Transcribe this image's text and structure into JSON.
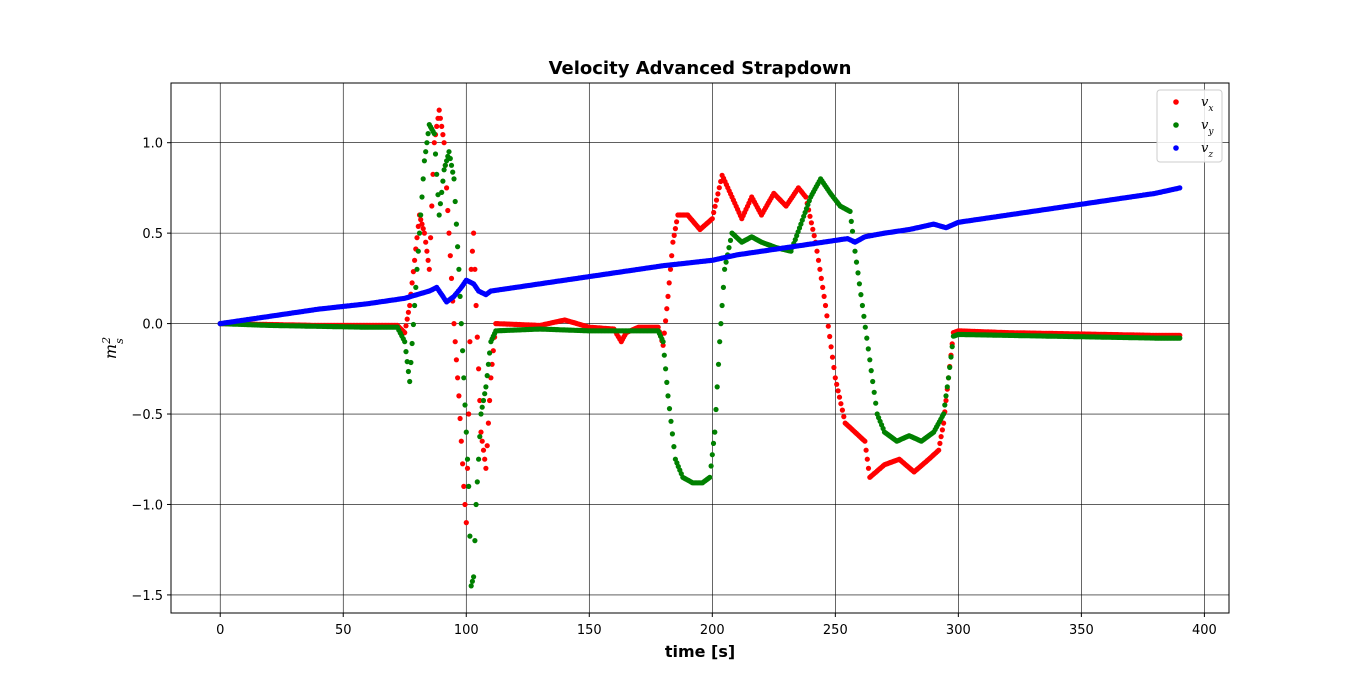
{
  "chart_data": {
    "type": "scatter",
    "title": "Velocity Advanced Strapdown",
    "xlabel": "time [s]",
    "ylabel": "m_s^2",
    "xlim": [
      -20,
      410
    ],
    "ylim": [
      -1.6,
      1.33
    ],
    "xticks": [
      0,
      50,
      100,
      150,
      200,
      250,
      300,
      350,
      400
    ],
    "xtick_labels": [
      "0",
      "50",
      "100",
      "150",
      "200",
      "250",
      "300",
      "350",
      "400"
    ],
    "yticks": [
      -1.5,
      -1.0,
      -0.5,
      0.0,
      0.5,
      1.0
    ],
    "ytick_labels": [
      "−1.5",
      "−1.0",
      "−0.5",
      "0.0",
      "0.5",
      "1.0"
    ],
    "grid": true,
    "legend_position": "top-right",
    "series": [
      {
        "name": "v_x",
        "legend_base": "v",
        "legend_sub": "x",
        "color": "#ff0000",
        "points": [
          [
            0,
            0.0
          ],
          [
            20,
            -0.005
          ],
          [
            40,
            -0.01
          ],
          [
            60,
            -0.01
          ],
          [
            72,
            -0.01
          ],
          [
            75,
            -0.05
          ],
          [
            77,
            0.1
          ],
          [
            79,
            0.35
          ],
          [
            81,
            0.6
          ],
          [
            83,
            0.5
          ],
          [
            85,
            0.3
          ],
          [
            87,
            1.0
          ],
          [
            89,
            1.18
          ],
          [
            91,
            1.0
          ],
          [
            93,
            0.5
          ],
          [
            95,
            0.0
          ],
          [
            97,
            -0.4
          ],
          [
            99,
            -0.9
          ],
          [
            100,
            -1.1
          ],
          [
            101,
            -0.5
          ],
          [
            102,
            0.3
          ],
          [
            103,
            0.5
          ],
          [
            104,
            0.1
          ],
          [
            106,
            -0.6
          ],
          [
            108,
            -0.8
          ],
          [
            110,
            -0.3
          ],
          [
            112,
            0.0
          ],
          [
            130,
            -0.01
          ],
          [
            140,
            0.02
          ],
          [
            150,
            -0.02
          ],
          [
            160,
            -0.03
          ],
          [
            163,
            -0.1
          ],
          [
            165,
            -0.05
          ],
          [
            170,
            -0.02
          ],
          [
            178,
            -0.02
          ],
          [
            180,
            -0.12
          ],
          [
            182,
            0.15
          ],
          [
            184,
            0.45
          ],
          [
            186,
            0.6
          ],
          [
            190,
            0.6
          ],
          [
            195,
            0.52
          ],
          [
            200,
            0.58
          ],
          [
            204,
            0.82
          ],
          [
            208,
            0.7
          ],
          [
            212,
            0.58
          ],
          [
            216,
            0.7
          ],
          [
            220,
            0.6
          ],
          [
            225,
            0.72
          ],
          [
            230,
            0.65
          ],
          [
            235,
            0.75
          ],
          [
            238,
            0.7
          ],
          [
            242,
            0.45
          ],
          [
            246,
            0.1
          ],
          [
            250,
            -0.3
          ],
          [
            254,
            -0.55
          ],
          [
            258,
            -0.6
          ],
          [
            262,
            -0.65
          ],
          [
            264,
            -0.85
          ],
          [
            270,
            -0.78
          ],
          [
            276,
            -0.75
          ],
          [
            282,
            -0.82
          ],
          [
            288,
            -0.75
          ],
          [
            292,
            -0.7
          ],
          [
            294,
            -0.55
          ],
          [
            296,
            -0.3
          ],
          [
            298,
            -0.05
          ],
          [
            300,
            -0.04
          ],
          [
            320,
            -0.05
          ],
          [
            340,
            -0.055
          ],
          [
            360,
            -0.06
          ],
          [
            380,
            -0.065
          ],
          [
            390,
            -0.065
          ]
        ]
      },
      {
        "name": "v_y",
        "legend_base": "v",
        "legend_sub": "y",
        "color": "#008000",
        "points": [
          [
            0,
            0.0
          ],
          [
            20,
            -0.01
          ],
          [
            40,
            -0.015
          ],
          [
            60,
            -0.02
          ],
          [
            72,
            -0.02
          ],
          [
            75,
            -0.1
          ],
          [
            77,
            -0.32
          ],
          [
            79,
            0.1
          ],
          [
            81,
            0.5
          ],
          [
            83,
            0.9
          ],
          [
            85,
            1.1
          ],
          [
            87,
            1.05
          ],
          [
            89,
            0.6
          ],
          [
            91,
            0.85
          ],
          [
            93,
            0.95
          ],
          [
            95,
            0.8
          ],
          [
            97,
            0.3
          ],
          [
            99,
            -0.3
          ],
          [
            101,
            -0.9
          ],
          [
            102,
            -1.45
          ],
          [
            103,
            -1.4
          ],
          [
            104,
            -1.0
          ],
          [
            106,
            -0.5
          ],
          [
            108,
            -0.35
          ],
          [
            110,
            -0.1
          ],
          [
            112,
            -0.04
          ],
          [
            130,
            -0.03
          ],
          [
            150,
            -0.04
          ],
          [
            170,
            -0.04
          ],
          [
            178,
            -0.04
          ],
          [
            180,
            -0.1
          ],
          [
            182,
            -0.4
          ],
          [
            185,
            -0.75
          ],
          [
            188,
            -0.85
          ],
          [
            192,
            -0.88
          ],
          [
            196,
            -0.88
          ],
          [
            199,
            -0.85
          ],
          [
            201,
            -0.6
          ],
          [
            203,
            -0.1
          ],
          [
            205,
            0.3
          ],
          [
            208,
            0.5
          ],
          [
            212,
            0.45
          ],
          [
            216,
            0.48
          ],
          [
            220,
            0.45
          ],
          [
            226,
            0.42
          ],
          [
            232,
            0.4
          ],
          [
            236,
            0.55
          ],
          [
            240,
            0.7
          ],
          [
            244,
            0.8
          ],
          [
            248,
            0.72
          ],
          [
            252,
            0.65
          ],
          [
            256,
            0.62
          ],
          [
            258,
            0.4
          ],
          [
            261,
            0.1
          ],
          [
            264,
            -0.2
          ],
          [
            267,
            -0.5
          ],
          [
            270,
            -0.6
          ],
          [
            275,
            -0.65
          ],
          [
            280,
            -0.62
          ],
          [
            285,
            -0.65
          ],
          [
            290,
            -0.6
          ],
          [
            294,
            -0.5
          ],
          [
            296,
            -0.3
          ],
          [
            298,
            -0.07
          ],
          [
            300,
            -0.06
          ],
          [
            320,
            -0.065
          ],
          [
            340,
            -0.07
          ],
          [
            360,
            -0.075
          ],
          [
            380,
            -0.08
          ],
          [
            390,
            -0.08
          ]
        ]
      },
      {
        "name": "v_z",
        "legend_base": "v",
        "legend_sub": "z",
        "color": "#0000ff",
        "points": [
          [
            0,
            0.0
          ],
          [
            20,
            0.04
          ],
          [
            40,
            0.08
          ],
          [
            60,
            0.11
          ],
          [
            75,
            0.14
          ],
          [
            80,
            0.16
          ],
          [
            85,
            0.18
          ],
          [
            88,
            0.2
          ],
          [
            90,
            0.16
          ],
          [
            92,
            0.12
          ],
          [
            95,
            0.15
          ],
          [
            98,
            0.2
          ],
          [
            100,
            0.24
          ],
          [
            103,
            0.22
          ],
          [
            105,
            0.18
          ],
          [
            108,
            0.16
          ],
          [
            110,
            0.18
          ],
          [
            120,
            0.2
          ],
          [
            140,
            0.24
          ],
          [
            160,
            0.28
          ],
          [
            180,
            0.32
          ],
          [
            200,
            0.35
          ],
          [
            210,
            0.38
          ],
          [
            220,
            0.4
          ],
          [
            240,
            0.44
          ],
          [
            255,
            0.47
          ],
          [
            258,
            0.45
          ],
          [
            262,
            0.48
          ],
          [
            270,
            0.5
          ],
          [
            280,
            0.52
          ],
          [
            290,
            0.55
          ],
          [
            295,
            0.53
          ],
          [
            300,
            0.56
          ],
          [
            320,
            0.6
          ],
          [
            340,
            0.64
          ],
          [
            360,
            0.68
          ],
          [
            380,
            0.72
          ],
          [
            390,
            0.75
          ]
        ]
      }
    ]
  }
}
